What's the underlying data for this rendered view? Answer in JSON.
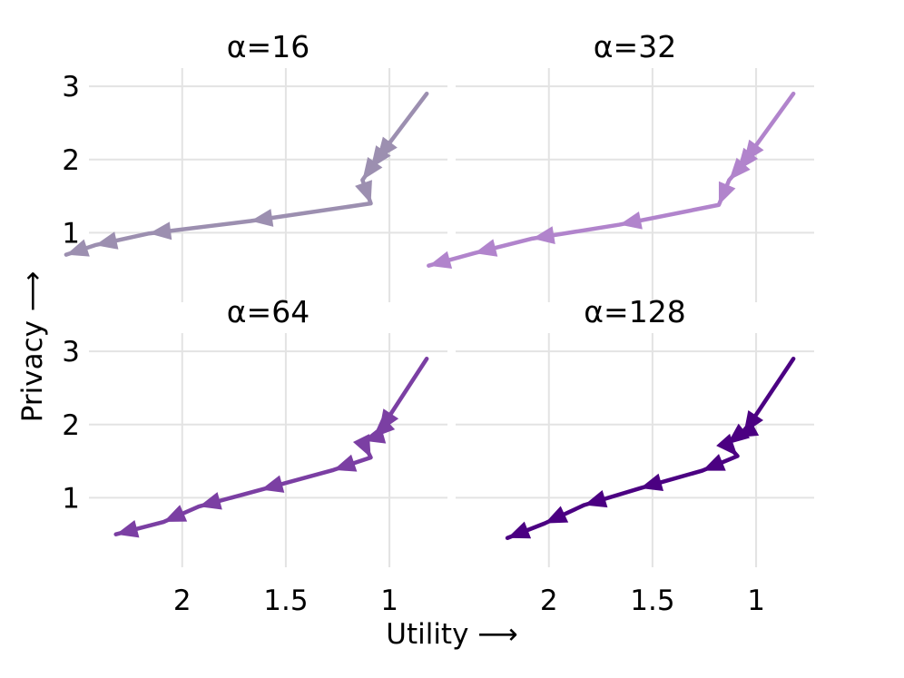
{
  "figure": {
    "xlabel": "Utility ⟶",
    "ylabel": "Privacy ⟶"
  },
  "chart_data": [
    {
      "type": "line",
      "title": "α=16",
      "color": "#9c8fb0",
      "x_axis": {
        "reversed": true,
        "ticks": [
          2,
          1.5,
          1
        ],
        "tick_labels": [
          "2",
          "1.5",
          "1"
        ],
        "show_tick_labels": false
      },
      "y_axis": {
        "ticks": [
          1,
          2,
          3
        ],
        "tick_labels": [
          "1",
          "2",
          "3"
        ],
        "show_tick_labels": true
      },
      "xlim": [
        2.45,
        0.72
      ],
      "ylim": [
        0.05,
        3.25
      ],
      "grid": true,
      "series": [
        {
          "x": [
            0.82,
            1.06,
            1.09,
            1.13,
            1.09,
            1.67,
            2.16,
            2.42,
            2.56
          ],
          "y": [
            2.9,
            2.0,
            1.88,
            1.72,
            1.4,
            1.16,
            0.99,
            0.83,
            0.7
          ]
        }
      ]
    },
    {
      "type": "line",
      "title": "α=32",
      "color": "#b184cc",
      "x_axis": {
        "reversed": true,
        "ticks": [
          2,
          1.5,
          1
        ],
        "tick_labels": [
          "2",
          "1.5",
          "1"
        ],
        "show_tick_labels": false
      },
      "y_axis": {
        "ticks": [
          1,
          2,
          3
        ],
        "tick_labels": [
          "1",
          "2",
          "3"
        ],
        "show_tick_labels": false
      },
      "xlim": [
        2.45,
        0.72
      ],
      "ylim": [
        0.05,
        3.25
      ],
      "grid": true,
      "series": [
        {
          "x": [
            0.82,
            1.06,
            1.09,
            1.13,
            1.18,
            1.66,
            2.08,
            2.36,
            2.58
          ],
          "y": [
            2.9,
            1.96,
            1.85,
            1.72,
            1.38,
            1.11,
            0.92,
            0.72,
            0.55
          ]
        }
      ]
    },
    {
      "type": "line",
      "title": "α=64",
      "color": "#7b3fa3",
      "x_axis": {
        "reversed": true,
        "ticks": [
          2,
          1.5,
          1
        ],
        "tick_labels": [
          "2",
          "1.5",
          "1"
        ],
        "show_tick_labels": true
      },
      "y_axis": {
        "ticks": [
          1,
          2,
          3
        ],
        "tick_labels": [
          "1",
          "2",
          "3"
        ],
        "show_tick_labels": true
      },
      "xlim": [
        2.45,
        0.72
      ],
      "ylim": [
        0.05,
        3.25
      ],
      "grid": true,
      "series": [
        {
          "x": [
            0.82,
            1.05,
            1.08,
            1.13,
            1.09,
            1.27,
            1.62,
            1.92,
            2.09,
            2.32
          ],
          "y": [
            2.9,
            1.9,
            1.82,
            1.78,
            1.55,
            1.38,
            1.11,
            0.88,
            0.67,
            0.5
          ]
        }
      ]
    },
    {
      "type": "line",
      "title": "α=128",
      "color": "#4b0082",
      "x_axis": {
        "reversed": true,
        "ticks": [
          2,
          1.5,
          1
        ],
        "tick_labels": [
          "2",
          "1.5",
          "1"
        ],
        "show_tick_labels": true
      },
      "y_axis": {
        "ticks": [
          1,
          2,
          3
        ],
        "tick_labels": [
          "1",
          "2",
          "3"
        ],
        "show_tick_labels": false
      },
      "xlim": [
        2.45,
        0.72
      ],
      "ylim": [
        0.05,
        3.25
      ],
      "grid": true,
      "series": [
        {
          "x": [
            0.82,
            1.06,
            1.1,
            1.14,
            1.09,
            1.26,
            1.56,
            1.83,
            2.02,
            2.2
          ],
          "y": [
            2.9,
            1.88,
            1.82,
            1.73,
            1.57,
            1.37,
            1.13,
            0.9,
            0.65,
            0.45
          ]
        }
      ]
    }
  ]
}
